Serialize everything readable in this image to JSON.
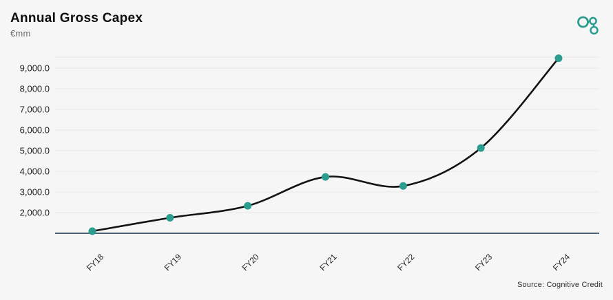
{
  "header": {
    "title": "Annual Gross Capex",
    "subtitle": "€mm"
  },
  "logo": {
    "name": "cognitive-credit-logo",
    "color": "#2a9d8f"
  },
  "chart_data": {
    "type": "line",
    "title": "Annual Gross Capex",
    "ylabel": "€mm",
    "xlabel": "",
    "categories": [
      "FY18",
      "FY19",
      "FY20",
      "FY21",
      "FY22",
      "FY23",
      "FY24"
    ],
    "values": [
      1100,
      1750,
      2330,
      3730,
      3290,
      5130,
      9480
    ],
    "ylim": [
      1000,
      9533
    ],
    "yticks": [
      2000,
      3000,
      4000,
      5000,
      6000,
      7000,
      8000,
      9000
    ],
    "ytick_labels": [
      "2,000.0",
      "3,000.0",
      "4,000.0",
      "5,000.0",
      "6,000.0",
      "7,000.0",
      "8,000.0",
      "9,000.0"
    ],
    "grid": true,
    "legend": false,
    "smooth": true,
    "line_color": "#131313",
    "marker_color": "#2a9d8f",
    "axis_color": "#15324d",
    "gridline_color": "#e8e8e8",
    "background": "#f6f6f6"
  },
  "source": {
    "label": "Source: Cognitive Credit"
  }
}
